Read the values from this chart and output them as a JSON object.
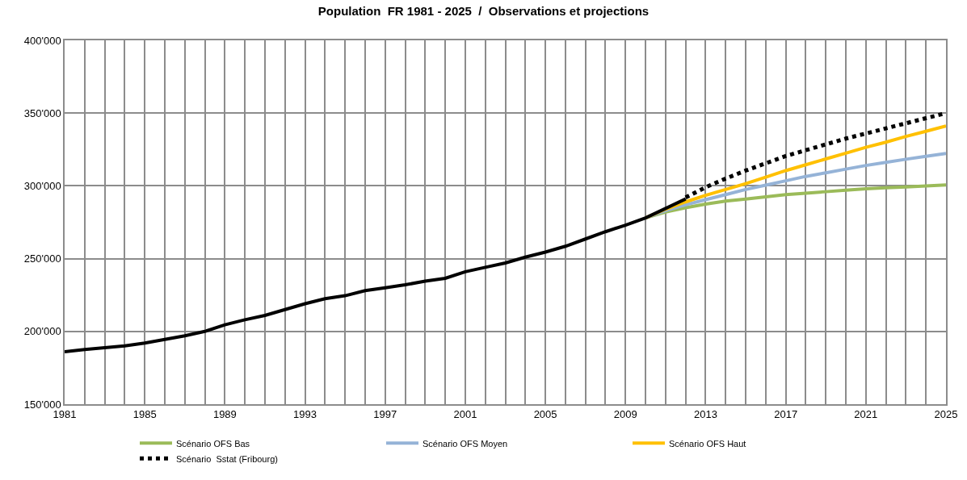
{
  "chart_data": {
    "type": "line",
    "title": "Population  FR 1981 - 2025  /  Observations et projections",
    "xlim": [
      1981,
      2025
    ],
    "xticks": [
      1981,
      {
        "value": 1982,
        "label": null
      },
      {
        "value": 1983,
        "label": null
      },
      {
        "value": 1984,
        "label": null
      },
      1985,
      {
        "value": 1986,
        "label": null
      },
      {
        "value": 1987,
        "label": null
      },
      {
        "value": 1988,
        "label": null
      },
      1989,
      {
        "value": 1990,
        "label": null
      },
      {
        "value": 1991,
        "label": null
      },
      {
        "value": 1992,
        "label": null
      },
      1993,
      {
        "value": 1994,
        "label": null
      },
      {
        "value": 1995,
        "label": null
      },
      {
        "value": 1996,
        "label": null
      },
      1997,
      {
        "value": 1998,
        "label": null
      },
      {
        "value": 1999,
        "label": null
      },
      {
        "value": 2000,
        "label": null
      },
      2001,
      {
        "value": 2002,
        "label": null
      },
      {
        "value": 2003,
        "label": null
      },
      {
        "value": 2004,
        "label": null
      },
      2005,
      {
        "value": 2006,
        "label": null
      },
      {
        "value": 2007,
        "label": null
      },
      {
        "value": 2008,
        "label": null
      },
      2009,
      {
        "value": 2010,
        "label": null
      },
      {
        "value": 2011,
        "label": null
      },
      {
        "value": 2012,
        "label": null
      },
      2013,
      {
        "value": 2014,
        "label": null
      },
      {
        "value": 2015,
        "label": null
      },
      {
        "value": 2016,
        "label": null
      },
      2017,
      {
        "value": 2018,
        "label": null
      },
      {
        "value": 2019,
        "label": null
      },
      {
        "value": 2020,
        "label": null
      },
      2021,
      {
        "value": 2022,
        "label": null
      },
      {
        "value": 2023,
        "label": null
      },
      {
        "value": 2024,
        "label": null
      },
      2025
    ],
    "ylim": [
      150000,
      400000
    ],
    "yticks": [
      {
        "value": 150000,
        "label": "150'000"
      },
      {
        "value": 200000,
        "label": "200'000"
      },
      {
        "value": 250000,
        "label": "250'000"
      },
      {
        "value": 300000,
        "label": "300'000"
      },
      {
        "value": 350000,
        "label": "350'000"
      },
      {
        "value": 400000,
        "label": "400'000"
      }
    ],
    "grid": true,
    "legend": "bottom",
    "marker": "none",
    "series": [
      {
        "name": "Scénario OFS Bas",
        "color": "#9bbb59",
        "line_style": "solid",
        "x": [
          2010,
          2011,
          2012,
          2013,
          2014,
          2015,
          2016,
          2017,
          2018,
          2019,
          2020,
          2021,
          2022,
          2023,
          2024,
          2025
        ],
        "values": [
          278000,
          282000,
          285000,
          287500,
          289500,
          291000,
          292500,
          294000,
          295000,
          296000,
          297000,
          298000,
          298700,
          299300,
          300000,
          300700
        ]
      },
      {
        "name": "Scénario OFS Moyen",
        "color": "#95b3d7",
        "line_style": "solid",
        "x": [
          2010,
          2011,
          2012,
          2013,
          2014,
          2015,
          2016,
          2017,
          2018,
          2019,
          2020,
          2021,
          2022,
          2023,
          2024,
          2025
        ],
        "values": [
          278000,
          283000,
          287000,
          290500,
          294000,
          297500,
          300500,
          303500,
          306500,
          309000,
          311500,
          314000,
          316200,
          318300,
          320300,
          322200
        ]
      },
      {
        "name": "Scénario OFS Haut",
        "color": "#ffc000",
        "line_style": "solid",
        "x": [
          2010,
          2011,
          2012,
          2013,
          2014,
          2015,
          2016,
          2017,
          2018,
          2019,
          2020,
          2021,
          2022,
          2023,
          2024,
          2025
        ],
        "values": [
          278000,
          284000,
          289000,
          293500,
          297500,
          301500,
          306000,
          310500,
          314500,
          318500,
          322500,
          326500,
          330000,
          334000,
          337500,
          341200
        ]
      },
      {
        "name": "Scénario  Sstat (Fribourg)",
        "color": "#000000",
        "line_style": "dotted",
        "x": [
          2012,
          2013,
          2014,
          2015,
          2016,
          2017,
          2018,
          2019,
          2020,
          2021,
          2022,
          2023,
          2024,
          2025
        ],
        "values": [
          292000,
          299000,
          305000,
          310500,
          315500,
          320500,
          324500,
          328500,
          332500,
          336000,
          339500,
          343000,
          346500,
          350000
        ]
      },
      {
        "color": "#000000",
        "line_style": "solid",
        "x": [
          1981,
          1982,
          1983,
          1984,
          1985,
          1986,
          1987,
          1988,
          1989,
          1990,
          1991,
          1992,
          1993,
          1994,
          1995,
          1996,
          1997,
          1998,
          1999,
          2000,
          2001,
          2002,
          2003,
          2004,
          2005,
          2006,
          2007,
          2008,
          2009,
          2010,
          2011,
          2012
        ],
        "values": [
          186000,
          187500,
          188800,
          190000,
          192000,
          194500,
          197000,
          200000,
          204500,
          208000,
          211000,
          215000,
          219000,
          222500,
          224500,
          228000,
          230000,
          232000,
          234500,
          236500,
          241000,
          244000,
          247000,
          251000,
          254500,
          258500,
          263500,
          268500,
          273000,
          278000,
          284500,
          291000
        ]
      }
    ]
  }
}
